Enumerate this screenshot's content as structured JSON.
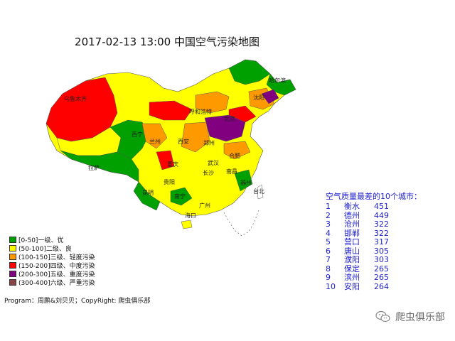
{
  "title": "2017-02-13 13:00 中国空气污染地图",
  "legend": [
    {
      "label": "[0-50]一级、优",
      "color": "#00a000"
    },
    {
      "label": "(50-100]二级、良",
      "color": "#ffff00"
    },
    {
      "label": "(100-150]三级、轻度污染",
      "color": "#ff9900"
    },
    {
      "label": "(150-200]四级、中度污染",
      "color": "#ff0000"
    },
    {
      "label": "(200-300]五级、重度污染",
      "color": "#800080"
    },
    {
      "label": "(300-400]六级、严重污染",
      "color": "#884444"
    }
  ],
  "footer": "Program：周鹏&刘贝贝；CopyRight: 爬虫俱乐部",
  "ranking": {
    "title": "空气质量最差的10个城市：",
    "rows": [
      {
        "rank": "1",
        "city": "衡水",
        "aqi": "451"
      },
      {
        "rank": "2",
        "city": "德州",
        "aqi": "449"
      },
      {
        "rank": "3",
        "city": "沧州",
        "aqi": "322"
      },
      {
        "rank": "4",
        "city": "邯郸",
        "aqi": "322"
      },
      {
        "rank": "5",
        "city": "营口",
        "aqi": "317"
      },
      {
        "rank": "6",
        "city": "唐山",
        "aqi": "305"
      },
      {
        "rank": "7",
        "city": "濮阳",
        "aqi": "303"
      },
      {
        "rank": "8",
        "city": "保定",
        "aqi": "265"
      },
      {
        "rank": "9",
        "city": "滨州",
        "aqi": "265"
      },
      {
        "rank": "10",
        "city": "安阳",
        "aqi": "264"
      }
    ]
  },
  "map_labels": {
    "urumqi": "乌鲁木齐",
    "hohhot": "呼和浩特",
    "xining": "西宁",
    "lanzhou": "兰州",
    "lhasa": "拉萨",
    "wuhan": "武汉",
    "changsha": "长沙",
    "guiyang": "贵阳",
    "guangzhou": "广州",
    "haikou": "海口",
    "beijing": "北京",
    "harbin": "哈尔滨",
    "shenyang": "沈阳",
    "zhengzhou": "郑州",
    "hefei": "合肥",
    "nanchang": "南昌",
    "fuzhou": "福州",
    "taibei": "台北",
    "chongqing": "重庆",
    "kunming": "昆明",
    "nanning": "南宁",
    "xian": "西安"
  },
  "watermark": "爬虫俱乐部",
  "watermark_icon": "wechat-icon"
}
